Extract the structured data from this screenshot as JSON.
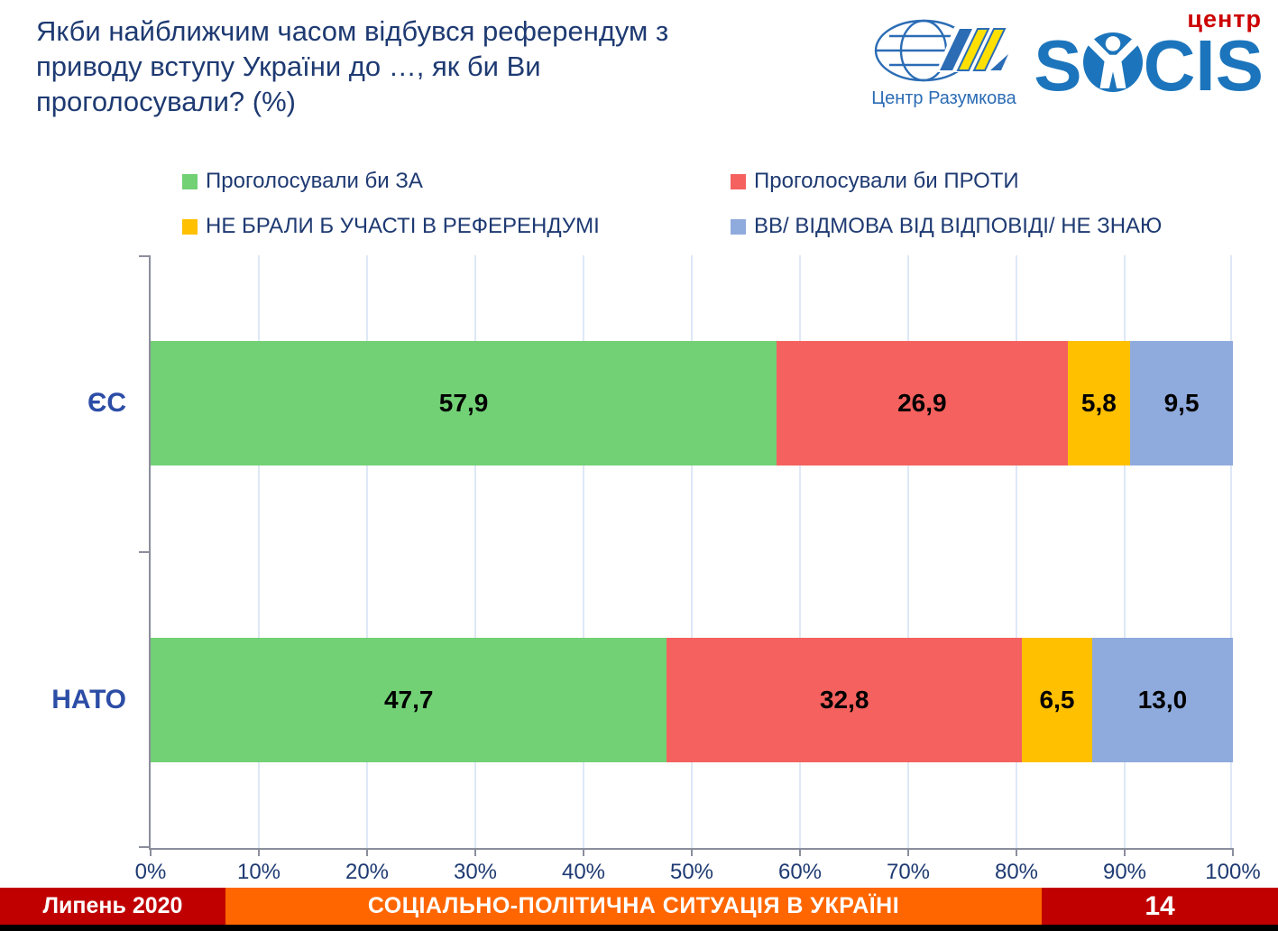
{
  "header": {
    "title": "Якби найближчим часом відбувся референдум з приводу вступу України до …, як би Ви проголосували? (%)"
  },
  "logos": {
    "razumkov": {
      "caption": "Центр Разумкова",
      "brand_blue": "#2B6CB5",
      "stripe_yellow": "#FFE000"
    },
    "socis": {
      "prefix": "S",
      "suffix": "CIS",
      "badge": "центр",
      "brand_blue": "#1C75BC",
      "badge_red": "#CC0000"
    }
  },
  "chart_data": {
    "type": "bar",
    "stacked": true,
    "orientation": "horizontal",
    "title": "Якби найближчим часом відбувся референдум з приводу вступу України до …, як би Ви проголосували? (%)",
    "categories": [
      "ЄС",
      "НАТО"
    ],
    "series": [
      {
        "name": "Проголосували би ЗА",
        "color": "#72D075",
        "values": [
          57.9,
          47.7
        ]
      },
      {
        "name": "Проголосували би ПРОТИ",
        "color": "#F4615E",
        "values": [
          26.9,
          32.8
        ]
      },
      {
        "name": "НЕ БРАЛИ Б УЧАСТІ В РЕФЕРЕНДУМІ",
        "color": "#FFC000",
        "values": [
          5.8,
          6.5
        ]
      },
      {
        "name": "ВВ/ ВІДМОВА ВІД ВІДПОВІДІ/ НЕ ЗНАЮ",
        "color": "#8FAADC",
        "values": [
          9.5,
          13.0
        ]
      }
    ],
    "value_labels": [
      [
        "57,9",
        "26,9",
        "5,8",
        "9,5"
      ],
      [
        "47,7",
        "32,8",
        "6,5",
        "13,0"
      ]
    ],
    "xticks": [
      "0%",
      "10%",
      "20%",
      "30%",
      "40%",
      "50%",
      "60%",
      "70%",
      "80%",
      "90%",
      "100%"
    ],
    "xlim": [
      0,
      100
    ],
    "grid": "vertical-light-blue",
    "legend_position": "top"
  },
  "footer": {
    "date": "Липень 2020",
    "title": "СОЦІАЛЬНО-ПОЛІТИЧНА СИТУАЦІЯ В УКРАЇНІ",
    "page": "14",
    "red": "#C00000",
    "orange": "#FF6600"
  }
}
